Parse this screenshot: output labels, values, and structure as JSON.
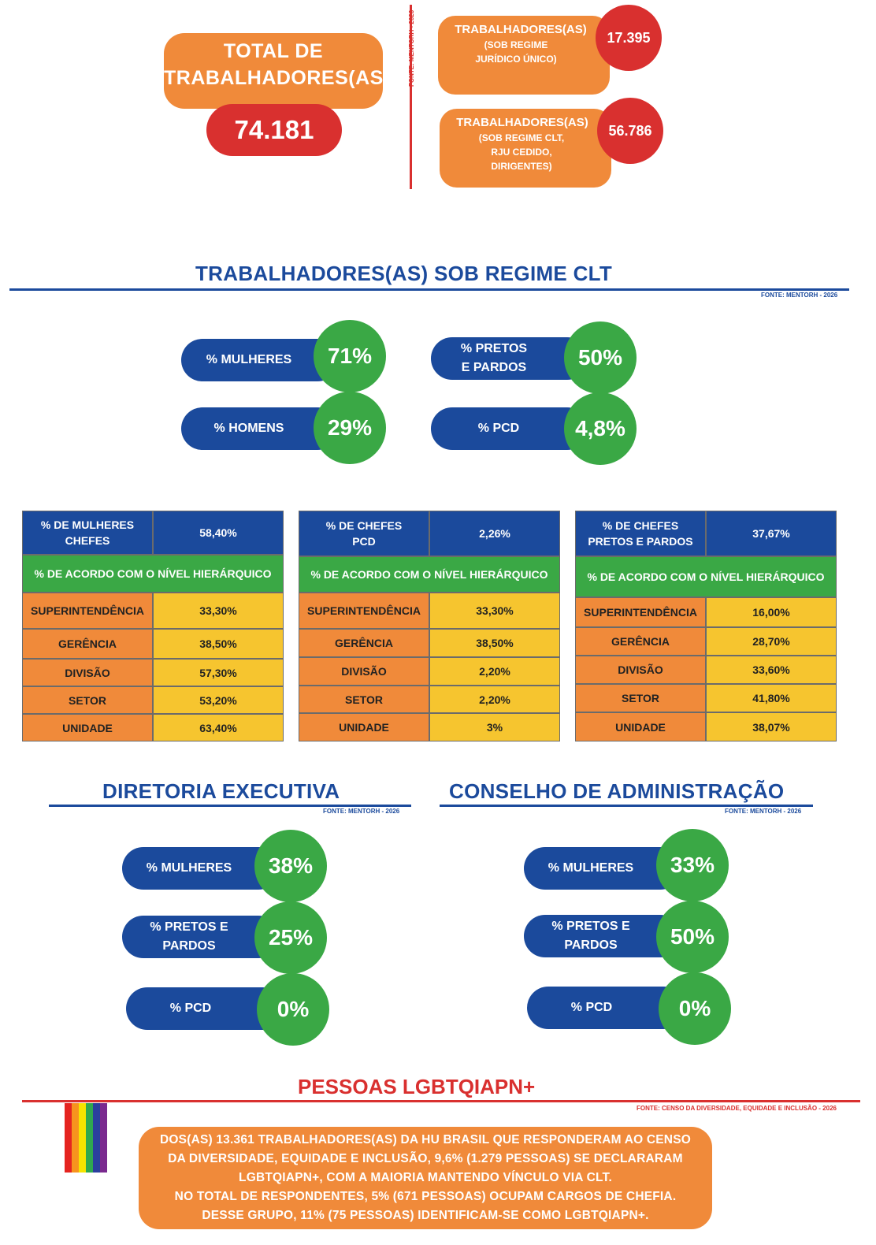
{
  "top": {
    "total_label": "TOTAL DE TRABALHADORES(AS)",
    "total_value": "74.181",
    "source_vertical": "FONTE: MENTORH - 2026",
    "rju": {
      "title": "TRABALHADORES(AS)",
      "sub": "(SOB REGIME JURÍDICO ÚNICO)",
      "value": "17.395"
    },
    "clt": {
      "title": "TRABALHADORES(AS)",
      "sub": "(SOB REGIME CLT, RJU CEDIDO, DIRIGENTES)",
      "value": "56.786"
    }
  },
  "clt_section": {
    "title": "TRABALHADORES(AS) SOB REGIME CLT",
    "source": "FONTE: MENTORH - 2026",
    "stats": [
      {
        "label": "% MULHERES",
        "value": "71%"
      },
      {
        "label": "% HOMENS",
        "value": "29%"
      },
      {
        "label": "% PRETOS E PARDOS",
        "value": "50%"
      },
      {
        "label": "% PCD",
        "value": "4,8%"
      }
    ]
  },
  "tables": [
    {
      "header_label": "% DE MULHERES CHEFES",
      "header_value": "58,40%",
      "subheader": "% DE ACORDO COM O NÍVEL HIERÁRQUICO",
      "rows": [
        {
          "level": "SUPERINTENDÊNCIA",
          "value": "33,30%"
        },
        {
          "level": "GERÊNCIA",
          "value": "38,50%"
        },
        {
          "level": "DIVISÃO",
          "value": "57,30%"
        },
        {
          "level": "SETOR",
          "value": "53,20%"
        },
        {
          "level": "UNIDADE",
          "value": "63,40%"
        }
      ]
    },
    {
      "header_label": "% DE CHEFES PCD",
      "header_value": "2,26%",
      "subheader": "% DE ACORDO COM O NÍVEL HIERÁRQUICO",
      "rows": [
        {
          "level": "SUPERINTENDÊNCIA",
          "value": "33,30%"
        },
        {
          "level": "GERÊNCIA",
          "value": "38,50%"
        },
        {
          "level": "DIVISÃO",
          "value": "2,20%"
        },
        {
          "level": "SETOR",
          "value": "2,20%"
        },
        {
          "level": "UNIDADE",
          "value": "3%"
        }
      ]
    },
    {
      "header_label": "% DE CHEFES PRETOS E PARDOS",
      "header_value": "37,67%",
      "subheader": "% DE ACORDO COM O NÍVEL HIERÁRQUICO",
      "rows": [
        {
          "level": "SUPERINTENDÊNCIA",
          "value": "16,00%"
        },
        {
          "level": "GERÊNCIA",
          "value": "28,70%"
        },
        {
          "level": "DIVISÃO",
          "value": "33,60%"
        },
        {
          "level": "SETOR",
          "value": "41,80%"
        },
        {
          "level": "UNIDADE",
          "value": "38,07%"
        }
      ]
    }
  ],
  "diretoria": {
    "title": "DIRETORIA EXECUTIVA",
    "source": "FONTE: MENTORH - 2026",
    "stats": [
      {
        "label": "% MULHERES",
        "value": "38%"
      },
      {
        "label": "% PRETOS E PARDOS",
        "value": "25%"
      },
      {
        "label": "% PCD",
        "value": "0%"
      }
    ]
  },
  "conselho": {
    "title": "CONSELHO DE ADMINISTRAÇÃO",
    "source": "FONTE: MENTORH - 2026",
    "stats": [
      {
        "label": "% MULHERES",
        "value": "33%"
      },
      {
        "label": "% PRETOS E PARDOS",
        "value": "50%"
      },
      {
        "label": "% PCD",
        "value": "0%"
      }
    ]
  },
  "lgbt": {
    "title": "PESSOAS LGBTQIAPN+",
    "source": "FONTE: CENSO DA DIVERSIDADE, EQUIDADE E INCLUSÃO - 2026",
    "flag_colors": [
      "#e52420",
      "#f7931e",
      "#f5e400",
      "#2fa84f",
      "#2b3f9e",
      "#7a2a8f"
    ],
    "text_lines": [
      "DOS(AS) 13.361 TRABALHADORES(AS) DA HU BRASIL QUE RESPONDERAM AO CENSO",
      "DA DIVERSIDADE, EQUIDADE E INCLUSÃO, 9,6% (1.279 PESSOAS) SE DECLARARAM",
      "LGBTQIAPN+, COM A MAIORIA MANTENDO VÍNCULO VIA CLT.",
      "NO TOTAL DE RESPONDENTES, 5% (671 PESSOAS) OCUPAM CARGOS DE CHEFIA.",
      "DESSE GRUPO, 11% (75 PESSOAS) IDENTIFICAM-SE COMO LGBTQIAPN+."
    ]
  },
  "colors": {
    "orange": "#f08a3a",
    "red": "#d9302f",
    "blue": "#1b4a9c",
    "green": "#3aa845",
    "yellow": "#f6c52f"
  }
}
